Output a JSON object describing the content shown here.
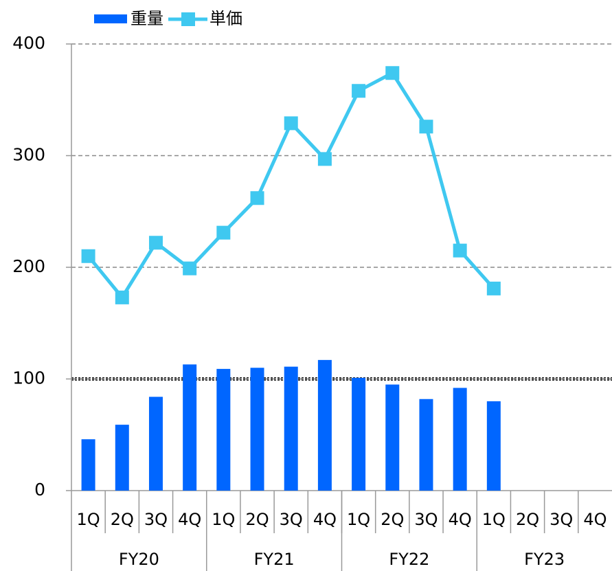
{
  "chart_data": {
    "type": "bar_line",
    "categories": [
      "1Q",
      "2Q",
      "3Q",
      "4Q",
      "1Q",
      "2Q",
      "3Q",
      "4Q",
      "1Q",
      "2Q",
      "3Q",
      "4Q",
      "1Q",
      "2Q",
      "3Q",
      "4Q"
    ],
    "groups": [
      "FY20",
      "FY21",
      "FY22",
      "FY23"
    ],
    "series": [
      {
        "name": "重量",
        "type": "bar",
        "color": "#0066ff",
        "values": [
          46,
          59,
          84,
          113,
          109,
          110,
          111,
          117,
          101,
          95,
          82,
          92,
          80,
          null,
          null,
          null
        ]
      },
      {
        "name": "単価",
        "type": "line",
        "color": "#3fc8f0",
        "values": [
          210,
          173,
          222,
          199,
          231,
          262,
          329,
          297,
          358,
          374,
          326,
          215,
          181,
          null,
          null,
          null
        ]
      }
    ],
    "ylim": [
      0,
      400
    ],
    "yticks": [
      0,
      100,
      200,
      300,
      400
    ],
    "grid": true,
    "reference_line": 100,
    "legend": "top-left"
  }
}
